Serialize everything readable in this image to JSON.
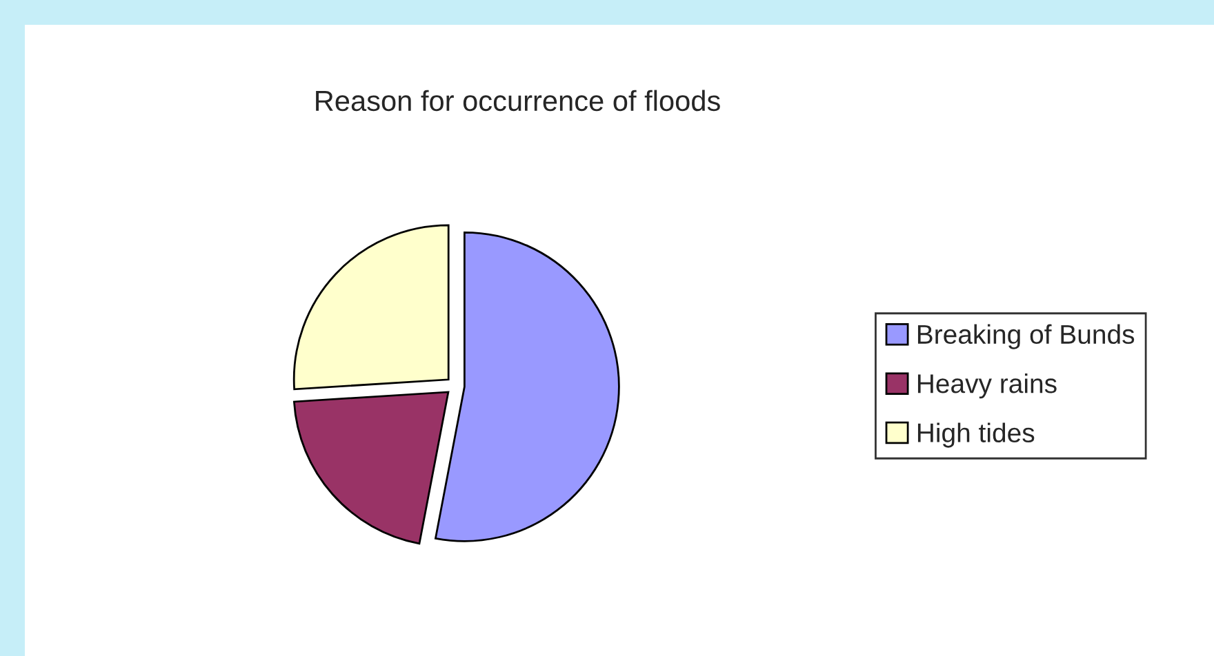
{
  "chart_data": {
    "type": "pie",
    "title": "Reason for occurrence of floods",
    "categories": [
      "Breaking of Bunds",
      "Heavy rains",
      "High tides"
    ],
    "values": [
      53,
      21,
      26
    ],
    "colors": [
      "#9999ff",
      "#993366",
      "#ffffcc"
    ],
    "legend": "right"
  }
}
